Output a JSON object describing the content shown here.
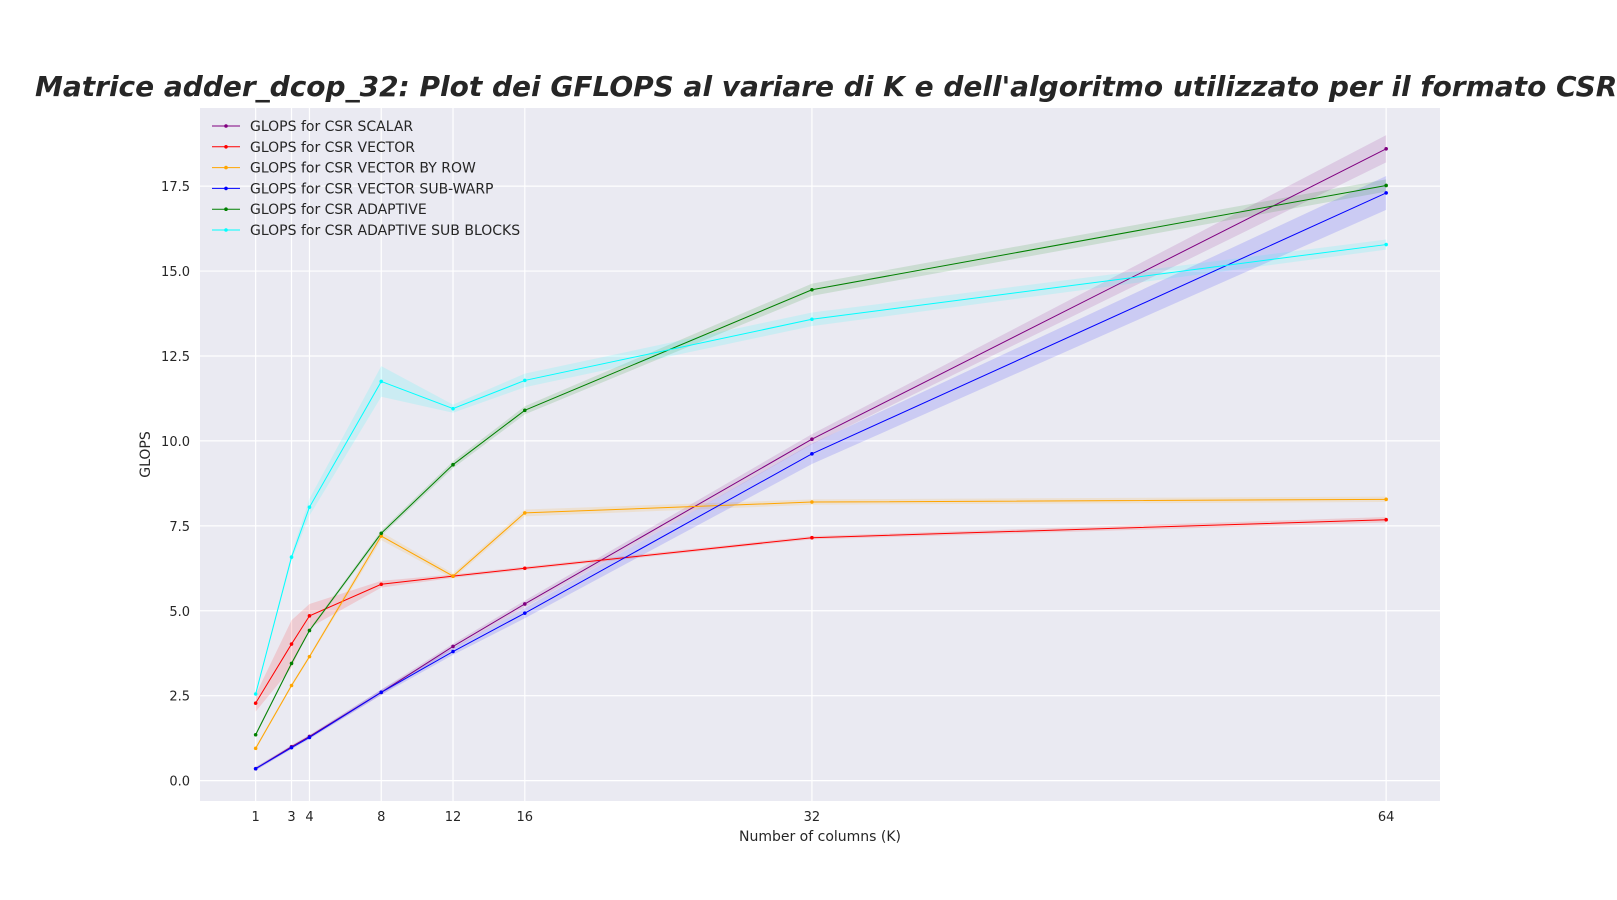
{
  "chart_data": {
    "type": "line",
    "title": "Matrice adder_dcop_32: Plot dei GFLOPS al variare di K e dell'algoritmo utilizzato per il formato CSR",
    "xlabel": "Number of columns (K)",
    "ylabel": "GLOPS",
    "x": [
      1,
      3,
      4,
      8,
      12,
      16,
      32,
      64
    ],
    "xticks": [
      "1",
      "3",
      "4",
      "8",
      "12",
      "16",
      "32",
      "64"
    ],
    "yticks": [
      "0.0",
      "2.5",
      "5.0",
      "7.5",
      "10.0",
      "12.5",
      "15.0",
      "17.5"
    ],
    "xlim": [
      -2.1,
      67.0
    ],
    "ylim": [
      -0.6,
      19.8
    ],
    "grid": true,
    "legend_position": "top-left",
    "background": "#eaeaf2",
    "series": [
      {
        "name": "GLOPS for CSR SCALAR",
        "color": "#800080",
        "values": [
          0.35,
          1.0,
          1.3,
          2.6,
          3.95,
          5.2,
          10.05,
          18.6
        ],
        "band": [
          0.05,
          0.05,
          0.05,
          0.08,
          0.08,
          0.1,
          0.15,
          0.4
        ]
      },
      {
        "name": "GLOPS for CSR VECTOR",
        "color": "#ff0000",
        "values": [
          2.28,
          4.02,
          4.85,
          5.78,
          6.02,
          6.25,
          7.15,
          7.68
        ],
        "band": [
          0.25,
          0.7,
          0.35,
          0.1,
          0.05,
          0.05,
          0.05,
          0.08
        ]
      },
      {
        "name": "GLOPS for CSR VECTOR BY ROW",
        "color": "#ffa500",
        "values": [
          0.95,
          2.8,
          3.65,
          7.2,
          6.02,
          7.88,
          8.2,
          8.28
        ],
        "band": [
          0.05,
          0.05,
          0.05,
          0.12,
          0.08,
          0.1,
          0.08,
          0.08
        ]
      },
      {
        "name": "GLOPS for CSR VECTOR SUB-WARP",
        "color": "#0000ff",
        "values": [
          0.35,
          0.97,
          1.27,
          2.6,
          3.8,
          4.93,
          9.62,
          17.3
        ],
        "band": [
          0.05,
          0.05,
          0.05,
          0.08,
          0.1,
          0.15,
          0.3,
          0.5
        ]
      },
      {
        "name": "GLOPS for CSR ADAPTIVE",
        "color": "#008000",
        "values": [
          1.35,
          3.45,
          4.42,
          7.28,
          9.3,
          10.9,
          14.45,
          17.52
        ],
        "band": [
          0.05,
          0.05,
          0.05,
          0.08,
          0.1,
          0.12,
          0.18,
          0.18
        ]
      },
      {
        "name": "GLOPS for CSR ADAPTIVE SUB BLOCKS",
        "color": "#00ffff",
        "values": [
          2.55,
          6.58,
          8.05,
          11.75,
          10.95,
          11.78,
          13.58,
          15.78
        ],
        "band": [
          0.05,
          0.1,
          0.25,
          0.45,
          0.12,
          0.2,
          0.2,
          0.15
        ]
      }
    ]
  }
}
